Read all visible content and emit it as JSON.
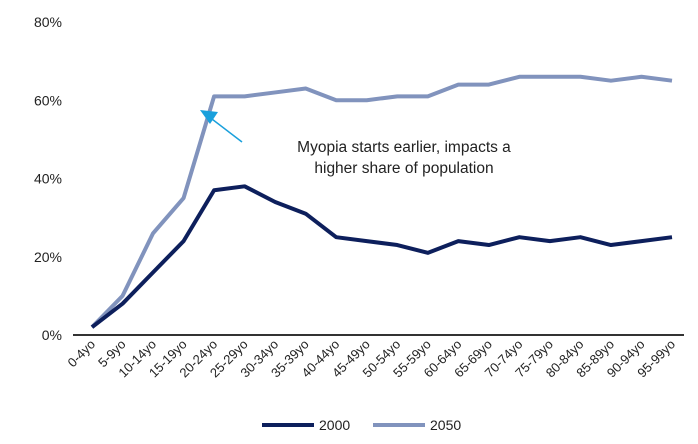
{
  "chart_data": {
    "type": "line",
    "title": "",
    "xlabel": "",
    "ylabel": "",
    "ylim": [
      0,
      80
    ],
    "yticks": [
      "0%",
      "20%",
      "40%",
      "60%",
      "80%"
    ],
    "grid": false,
    "legend": "bottom",
    "categories": [
      "0-4yo",
      "5-9yo",
      "10-14yo",
      "15-19yo",
      "20-24yo",
      "25-29yo",
      "30-34yo",
      "35-39yo",
      "40-44yo",
      "45-49yo",
      "50-54yo",
      "55-59yo",
      "60-64yo",
      "65-69yo",
      "70-74yo",
      "75-79yo",
      "80-84yo",
      "85-89yo",
      "90-94yo",
      "95-99yo"
    ],
    "series": [
      {
        "name": "2000",
        "color": "#0d1f5c",
        "values": [
          2,
          8,
          16,
          24,
          37,
          38,
          34,
          31,
          25,
          24,
          23,
          21,
          24,
          23,
          25,
          24,
          25,
          23,
          24,
          25
        ]
      },
      {
        "name": "2050",
        "color": "#8193bd",
        "values": [
          2,
          10,
          26,
          35,
          61,
          61,
          62,
          63,
          60,
          60,
          61,
          61,
          64,
          64,
          66,
          66,
          66,
          65,
          66,
          65
        ]
      }
    ],
    "annotation": {
      "lines": [
        "Myopia starts earlier, impacts a",
        "higher share of population"
      ],
      "arrow_color": "#1aa0dc",
      "target_category": "20-24yo",
      "target_value": 61
    }
  }
}
